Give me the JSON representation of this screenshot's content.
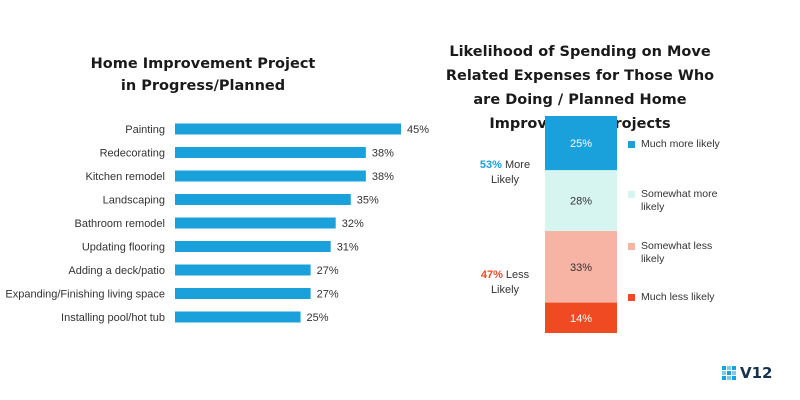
{
  "chart_data": [
    {
      "type": "bar",
      "orientation": "horizontal",
      "title": "Home Improvement Project in Progress/Planned",
      "categories": [
        "Painting",
        "Redecorating",
        "Kitchen remodel",
        "Landscaping",
        "Bathroom remodel",
        "Updating flooring",
        "Adding a deck/patio",
        "Expanding/Finishing living space",
        "Installing pool/hot tub"
      ],
      "values": [
        45,
        38,
        38,
        35,
        32,
        31,
        27,
        27,
        25
      ],
      "value_labels": [
        "45%",
        "38%",
        "38%",
        "35%",
        "32%",
        "31%",
        "27%",
        "27%",
        "25%"
      ],
      "xlim": [
        0,
        45
      ],
      "grid": false,
      "color": "#1aa1dc"
    },
    {
      "type": "bar",
      "orientation": "stacked-vertical",
      "title": "Likelihood of Spending on Move Related Expenses for Those Who are Doing / Planned Home Improvement Projects",
      "series": [
        {
          "name": "Much more likely",
          "value": 25,
          "label": "25%",
          "color": "#1aa1dc",
          "label_color": "#ffffff"
        },
        {
          "name": "Somewhat more likely",
          "value": 28,
          "label": "28%",
          "color": "#d6f5f1",
          "label_color": "#333333"
        },
        {
          "name": "Somewhat less likely",
          "value": 33,
          "label": "33%",
          "color": "#f7b3a4",
          "label_color": "#333333"
        },
        {
          "name": "Much less likely",
          "value": 14,
          "label": "14%",
          "color": "#f04a23",
          "label_color": "#ffffff"
        }
      ],
      "legend_position": "right",
      "annotations": [
        {
          "pct": "53%",
          "rest_line1": " More",
          "line2": "Likely",
          "color": "#1aa1dc"
        },
        {
          "pct": "47%",
          "rest_line1": " Less",
          "line2": "Likely",
          "color": "#f04a23"
        }
      ]
    }
  ],
  "brand": {
    "name": "V12"
  }
}
